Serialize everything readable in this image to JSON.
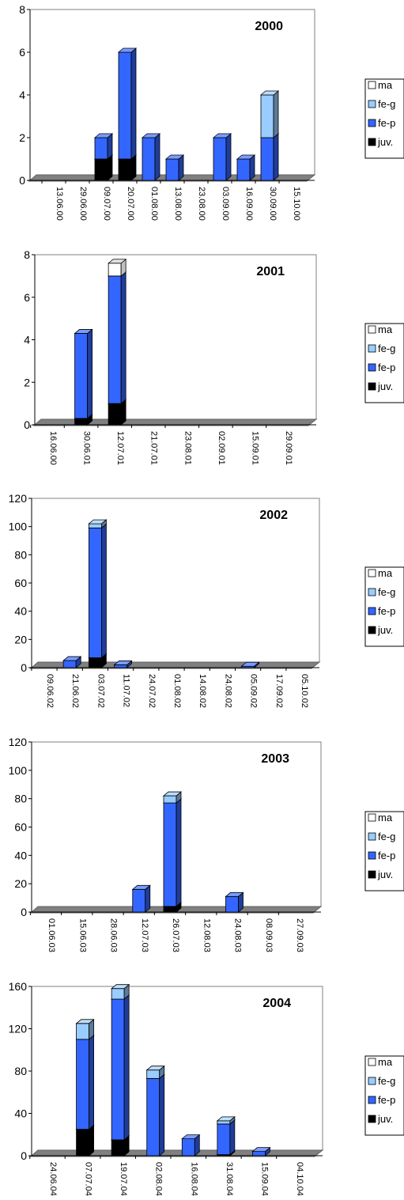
{
  "colors": {
    "ma": "#ffffff",
    "fe-g": "#99ccff",
    "fe-p": "#3366ff",
    "juv.": "#000000",
    "floor": "#808080"
  },
  "chart_data": [
    {
      "type": "bar",
      "title": "2000",
      "categories": [
        "13.06.00",
        "29.06.00",
        "09.07.00",
        "20.07.00",
        "01.08.00",
        "13.08.00",
        "23.08.00",
        "03.09.00",
        "16.09.00",
        "30.09.00",
        "15.10.00"
      ],
      "yticks": [
        "0",
        "2",
        "4",
        "6",
        "8"
      ],
      "ylim": [
        0,
        8
      ],
      "legend": [
        "ma",
        "fe-g",
        "fe-p",
        "juv."
      ],
      "series": [
        {
          "name": "ma",
          "values": [
            0,
            0,
            0,
            0,
            0,
            0,
            0,
            0,
            0,
            0,
            0
          ]
        },
        {
          "name": "fe-g",
          "values": [
            0,
            0,
            0,
            0,
            0,
            0,
            0,
            0,
            0,
            2,
            0
          ]
        },
        {
          "name": "fe-p",
          "values": [
            0,
            0,
            1,
            5,
            2,
            1,
            0,
            2,
            1,
            2,
            0
          ]
        },
        {
          "name": "juv.",
          "values": [
            0,
            0,
            1,
            1,
            0,
            0,
            0,
            0,
            0,
            0,
            0
          ]
        }
      ]
    },
    {
      "type": "bar",
      "title": "2001",
      "categories": [
        "16.06.00",
        "30.06.01",
        "12.07.01",
        "21.07.01",
        "23.08.01",
        "02.09.01",
        "15.09.01",
        "29.09.01"
      ],
      "yticks": [
        "0",
        "2",
        "4",
        "6",
        "8"
      ],
      "ylim": [
        0,
        8
      ],
      "legend": [
        "ma",
        "fe-g",
        "fe-p",
        "juv."
      ],
      "series": [
        {
          "name": "ma",
          "values": [
            0,
            0,
            0.6,
            0,
            0,
            0,
            0,
            0
          ]
        },
        {
          "name": "fe-g",
          "values": [
            0,
            0,
            0,
            0,
            0,
            0,
            0,
            0
          ]
        },
        {
          "name": "fe-p",
          "values": [
            0,
            4,
            6,
            0,
            0,
            0,
            0,
            0
          ]
        },
        {
          "name": "juv.",
          "values": [
            0,
            0.3,
            1,
            0,
            0,
            0,
            0,
            0
          ]
        }
      ]
    },
    {
      "type": "bar",
      "title": "2002",
      "categories": [
        "09.06.02",
        "21.06.02",
        "03.07.02",
        "11.07.02",
        "24.07.02",
        "01.08.02",
        "14.08.02",
        "24.08.02",
        "05.09.02",
        "17.09.02",
        "05.10.02"
      ],
      "yticks": [
        "0",
        "20",
        "40",
        "60",
        "80",
        "100",
        "120"
      ],
      "ylim": [
        0,
        120
      ],
      "legend": [
        "ma",
        "fe-g",
        "fe-p",
        "juv."
      ],
      "series": [
        {
          "name": "ma",
          "values": [
            0,
            0,
            0,
            0,
            0,
            0,
            0,
            0,
            0,
            0,
            0
          ]
        },
        {
          "name": "fe-g",
          "values": [
            0,
            0,
            3,
            0,
            0,
            0,
            0,
            0,
            0,
            0,
            0
          ]
        },
        {
          "name": "fe-p",
          "values": [
            0,
            5,
            92,
            2,
            0,
            0,
            0,
            0,
            1,
            0,
            0
          ]
        },
        {
          "name": "juv.",
          "values": [
            0,
            0,
            7,
            0,
            0,
            0,
            0,
            0,
            0,
            0,
            0
          ]
        }
      ]
    },
    {
      "type": "bar",
      "title": "2003",
      "categories": [
        "01.06.03",
        "15.06.03",
        "28.06.03",
        "12.07.03",
        "26.07.03",
        "12.08.03",
        "24.08.03",
        "08.09.03",
        "27.09.03"
      ],
      "yticks": [
        "0",
        "20",
        "40",
        "60",
        "80",
        "100",
        "120"
      ],
      "ylim": [
        0,
        120
      ],
      "legend": [
        "ma",
        "fe-g",
        "fe-p",
        "juv."
      ],
      "series": [
        {
          "name": "ma",
          "values": [
            0,
            0,
            0,
            0,
            0,
            0,
            0,
            0,
            0
          ]
        },
        {
          "name": "fe-g",
          "values": [
            0,
            0,
            0,
            0,
            5,
            0,
            0,
            0,
            0
          ]
        },
        {
          "name": "fe-p",
          "values": [
            0,
            0,
            0,
            16,
            73,
            0,
            11,
            0,
            0
          ]
        },
        {
          "name": "juv.",
          "values": [
            0,
            0,
            0,
            0,
            4,
            0,
            0,
            0,
            0
          ]
        }
      ]
    },
    {
      "type": "bar",
      "title": "2004",
      "categories": [
        "24.06.04",
        "07.07.04",
        "19.07.04",
        "02.08.04",
        "16.08.04",
        "31.08.04",
        "15.09.04",
        "04.10.04"
      ],
      "yticks": [
        "0",
        "40",
        "80",
        "120",
        "160"
      ],
      "ylim": [
        0,
        160
      ],
      "legend": [
        "ma",
        "fe-g",
        "fe-p",
        "juv."
      ],
      "series": [
        {
          "name": "ma",
          "values": [
            0,
            0,
            0,
            0,
            0,
            0,
            0,
            0
          ]
        },
        {
          "name": "fe-g",
          "values": [
            0,
            15,
            10,
            8,
            0,
            3,
            0,
            0
          ]
        },
        {
          "name": "fe-p",
          "values": [
            0,
            85,
            133,
            73,
            16,
            29,
            4,
            0
          ]
        },
        {
          "name": "juv.",
          "values": [
            0,
            25,
            15,
            0,
            0,
            1,
            0,
            0
          ]
        }
      ]
    }
  ]
}
